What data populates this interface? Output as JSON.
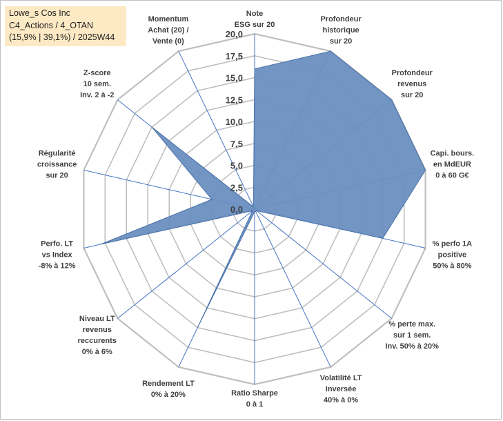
{
  "info_box": {
    "line1": "Lowe_s Cos Inc",
    "line2": "C4_Actions / 4_OTAN",
    "line3": "(15,9% | 39,1%) / 2025W44"
  },
  "colors": {
    "fill": "#6a8fc0",
    "stroke": "#4a72a9",
    "grid": "#bfbfbf",
    "spoke": "#4472c4",
    "info_bg": "#fde9c4"
  },
  "chart_data": {
    "type": "radar",
    "title": "",
    "rmin": 0,
    "rmax": 20,
    "tick_values": [
      0,
      2.5,
      5,
      7.5,
      10,
      12.5,
      15,
      17.5,
      20
    ],
    "tick_labels": [
      "0,0",
      "2,5",
      "5,0",
      "7,5",
      "10,0",
      "12,5",
      "15,0",
      "17,5",
      "20,0"
    ],
    "axes": [
      {
        "lines": [
          "Note",
          "ESG sur 20"
        ]
      },
      {
        "lines": [
          "Profondeur",
          "historique",
          "sur 20"
        ]
      },
      {
        "lines": [
          "Profondeur",
          "revenus",
          "sur 20"
        ]
      },
      {
        "lines": [
          "Capi. bours.",
          "en MdEUR",
          "0 à 60 G€"
        ]
      },
      {
        "lines": [
          "% perfo 1A",
          "positive",
          "50% à 80%"
        ]
      },
      {
        "lines": [
          "% perte max.",
          "sur 1 sem.",
          "Inv. 50% à 20%"
        ]
      },
      {
        "lines": [
          "Volatilité LT",
          "Inversée",
          "40% à 0%"
        ]
      },
      {
        "lines": [
          "Ratio Sharpe",
          "0 à 1"
        ]
      },
      {
        "lines": [
          "Rendement LT",
          "0% à 20%"
        ]
      },
      {
        "lines": [
          "Niveau LT",
          "revenus",
          "reccurents",
          "0% à 6%"
        ]
      },
      {
        "lines": [
          "Perfo. LT",
          "vs Index",
          "-8% à 12%"
        ]
      },
      {
        "lines": [
          "Régularité",
          "croissance",
          "sur 20"
        ]
      },
      {
        "lines": [
          "Z-score",
          "10 sem.",
          "Inv. 2 à -2"
        ]
      },
      {
        "lines": [
          "Momentum",
          "Achat (20) /",
          "Vente (0)"
        ]
      }
    ],
    "series": [
      {
        "name": "Lowe_s Cos Inc",
        "values": [
          16,
          20,
          20,
          20,
          15,
          0.3,
          0.3,
          0.3,
          15,
          0.3,
          18,
          5,
          15,
          0.3
        ]
      }
    ]
  }
}
